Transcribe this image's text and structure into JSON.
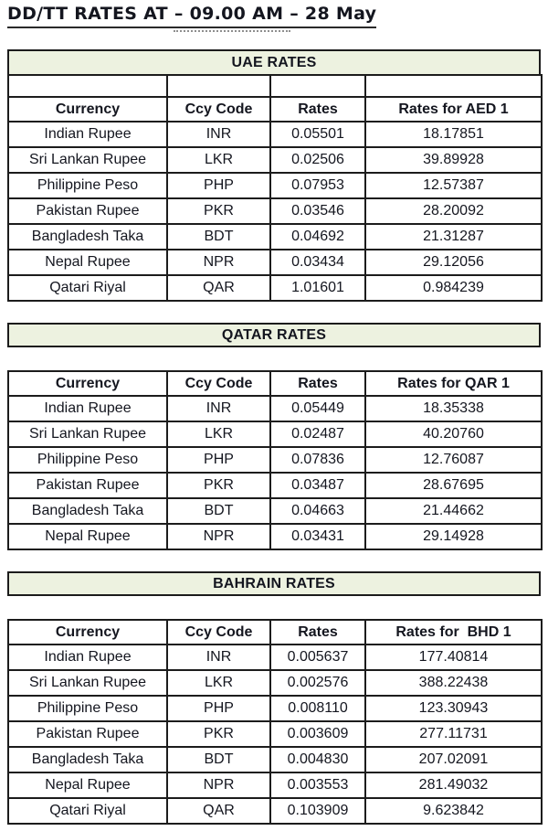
{
  "title": "DD/TT RATES AT – 09.00 AM – 28 May",
  "colors": {
    "banner_bg": "#edf2e0",
    "border": "#1c1c1c",
    "text": "#14161f"
  },
  "table": {
    "shared_columns": [
      "Currency",
      "Ccy Code",
      "Rates"
    ]
  },
  "sections": [
    {
      "name": "UAE RATES",
      "rate_column": "Rates for AED 1",
      "attached_spacer_row": true,
      "rows": [
        [
          "Indian Rupee",
          "INR",
          "0.05501",
          "18.17851"
        ],
        [
          "Sri Lankan Rupee",
          "LKR",
          "0.02506",
          "39.89928"
        ],
        [
          "Philippine Peso",
          "PHP",
          "0.07953",
          "12.57387"
        ],
        [
          "Pakistan Rupee",
          "PKR",
          "0.03546",
          "28.20092"
        ],
        [
          "Bangladesh Taka",
          "BDT",
          "0.04692",
          "21.31287"
        ],
        [
          "Nepal Rupee",
          "NPR",
          "0.03434",
          "29.12056"
        ],
        [
          "Qatari Riyal",
          "QAR",
          "1.01601",
          "0.984239"
        ]
      ]
    },
    {
      "name": "QATAR RATES",
      "rate_column": "Rates for QAR 1",
      "attached_spacer_row": false,
      "rows": [
        [
          "Indian Rupee",
          "INR",
          "0.05449",
          "18.35338"
        ],
        [
          "Sri Lankan Rupee",
          "LKR",
          "0.02487",
          "40.20760"
        ],
        [
          "Philippine Peso",
          "PHP",
          "0.07836",
          "12.76087"
        ],
        [
          "Pakistan Rupee",
          "PKR",
          "0.03487",
          "28.67695"
        ],
        [
          "Bangladesh Taka",
          "BDT",
          "0.04663",
          "21.44662"
        ],
        [
          "Nepal Rupee",
          "NPR",
          "0.03431",
          "29.14928"
        ]
      ]
    },
    {
      "name": "BAHRAIN RATES",
      "rate_column": "Rates for  BHD 1",
      "attached_spacer_row": false,
      "rows": [
        [
          "Indian Rupee",
          "INR",
          "0.005637",
          "177.40814"
        ],
        [
          "Sri Lankan Rupee",
          "LKR",
          "0.002576",
          "388.22438"
        ],
        [
          "Philippine Peso",
          "PHP",
          "0.008110",
          "123.30943"
        ],
        [
          "Pakistan Rupee",
          "PKR",
          "0.003609",
          "277.11731"
        ],
        [
          "Bangladesh Taka",
          "BDT",
          "0.004830",
          "207.02091"
        ],
        [
          "Nepal Rupee",
          "NPR",
          "0.003553",
          "281.49032"
        ],
        [
          "Qatari Riyal",
          "QAR",
          "0.103909",
          "9.623842"
        ]
      ]
    }
  ]
}
